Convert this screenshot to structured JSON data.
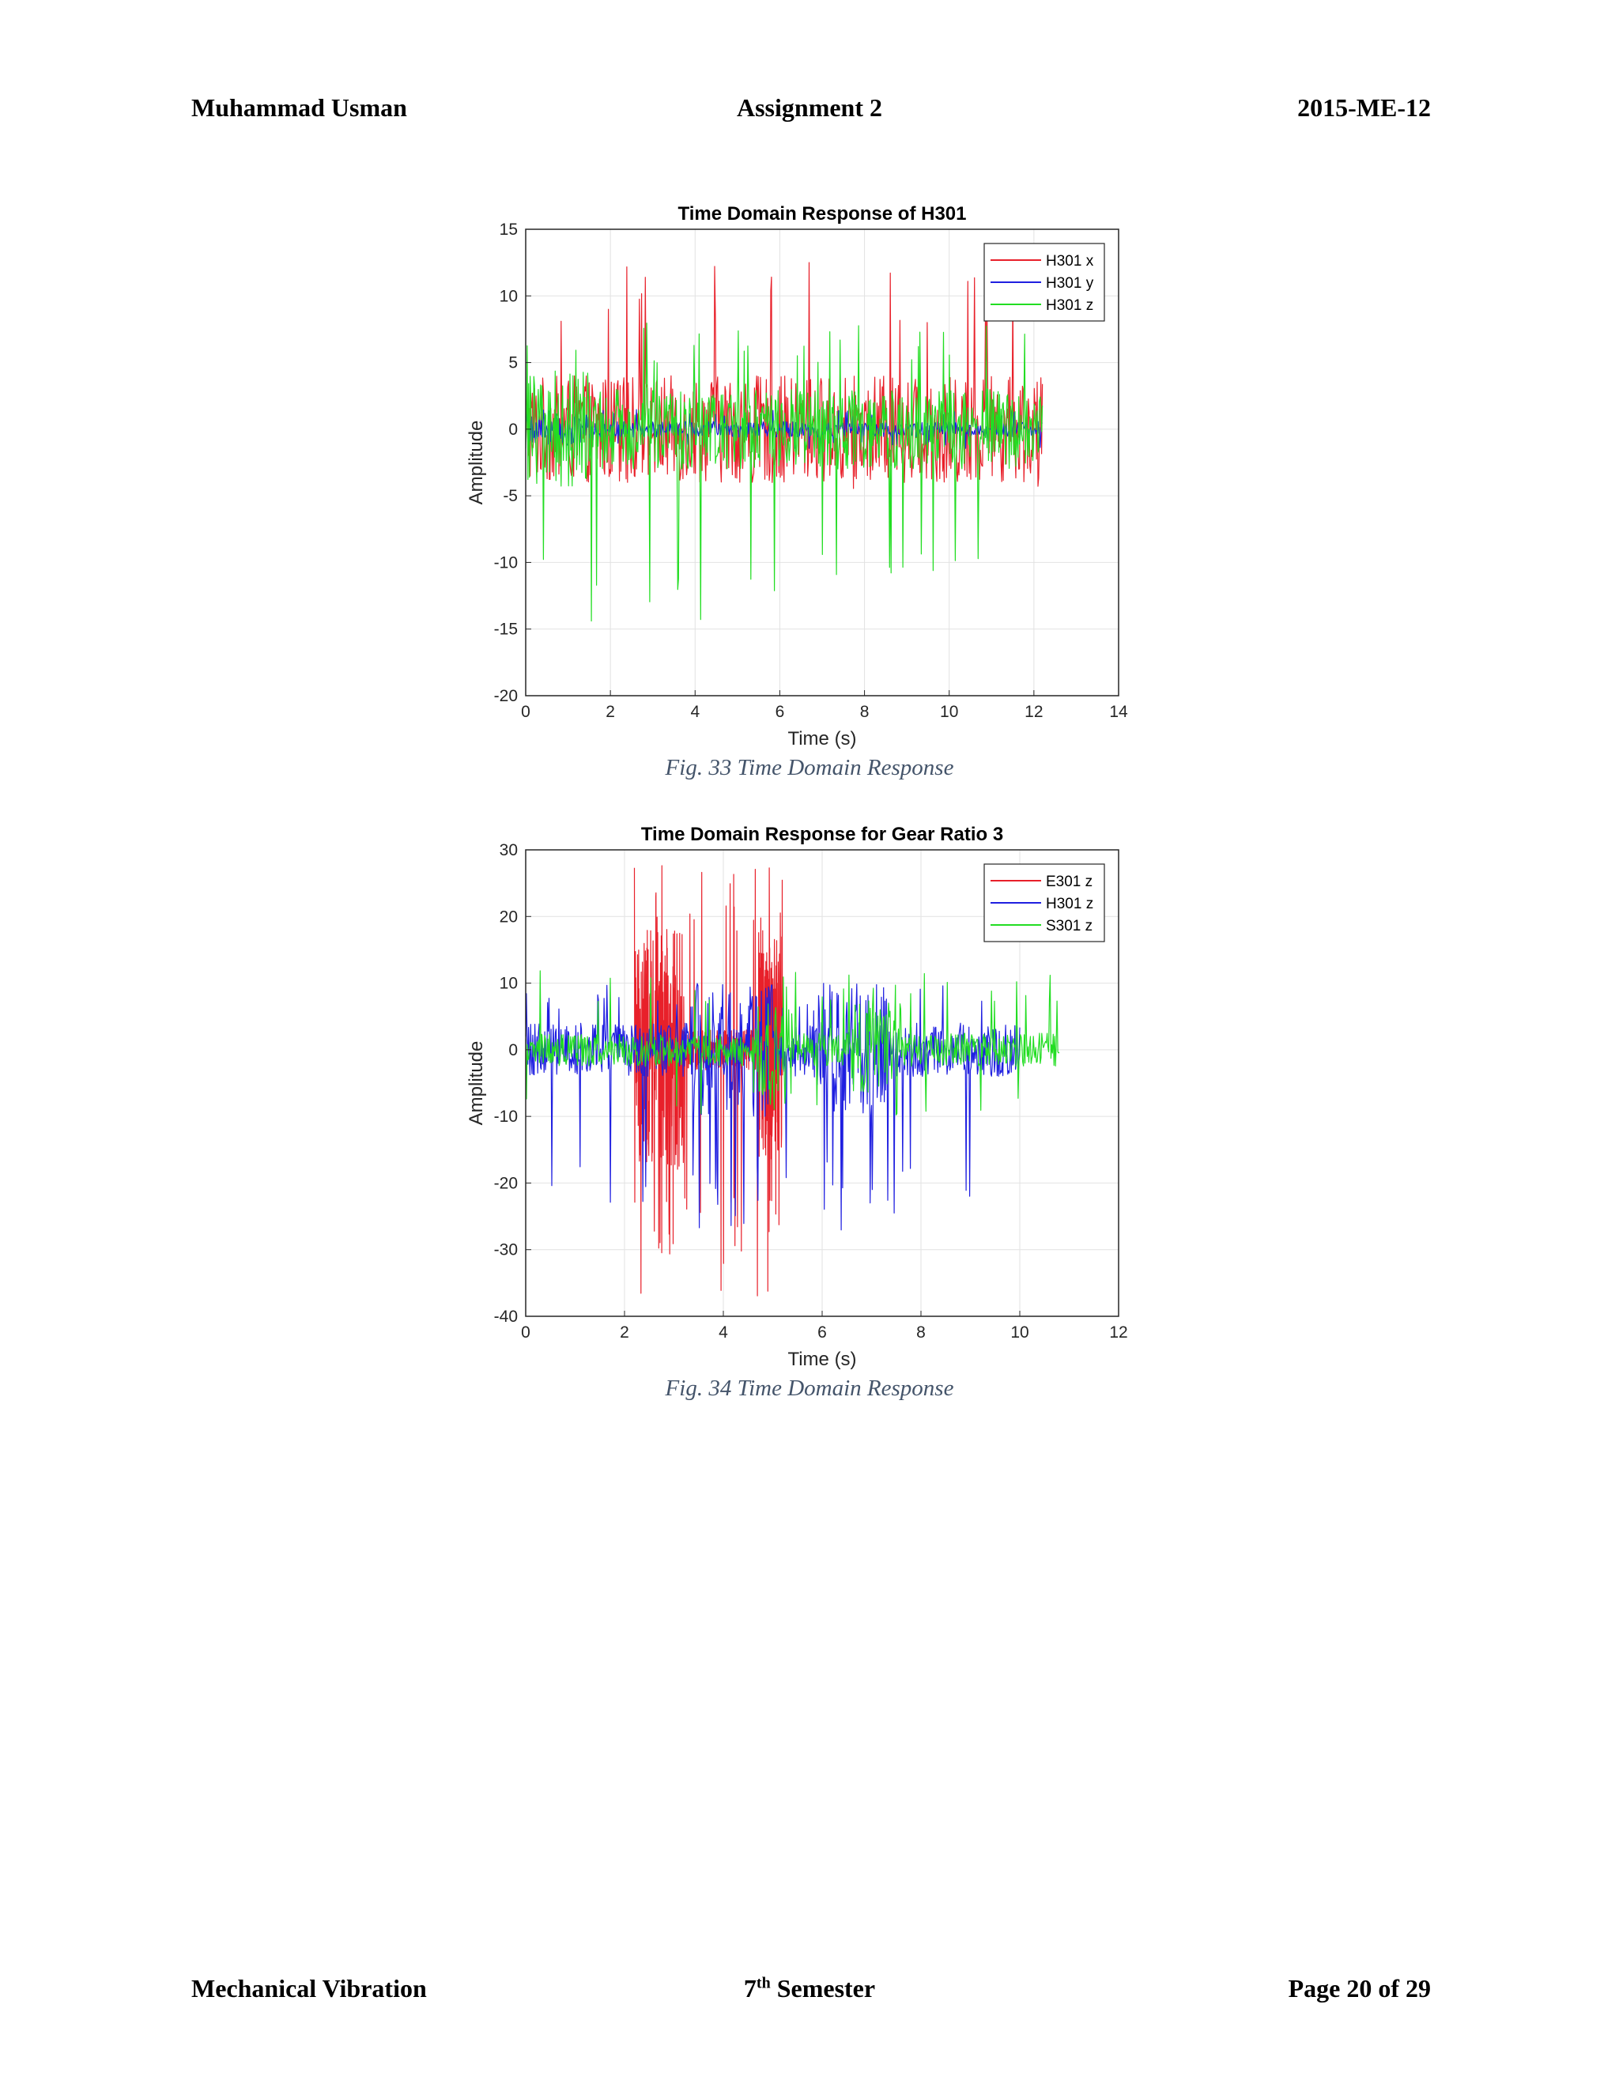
{
  "header": {
    "left": "Muhammad Usman",
    "center": "Assignment 2",
    "right": "2015-ME-12"
  },
  "footer": {
    "left": "Mechanical Vibration",
    "center_base": "7",
    "center_sup": "th",
    "center_rest": " Semester",
    "right": "Page 20 of 29"
  },
  "figures": [
    {
      "caption": "Fig.  33 Time Domain Response"
    },
    {
      "caption": "Fig.  34 Time Domain Response"
    }
  ],
  "chart_data": [
    {
      "type": "line",
      "title": "Time Domain Response of H301",
      "xlabel": "Time (s)",
      "ylabel": "Amplitude",
      "xlim": [
        0,
        14
      ],
      "ylim": [
        -20,
        15
      ],
      "xticks": [
        0,
        2,
        4,
        6,
        8,
        10,
        12,
        14
      ],
      "yticks": [
        -20,
        -15,
        -10,
        -5,
        0,
        5,
        10,
        15
      ],
      "grid": true,
      "legend_position": "top-right",
      "data_extent_x": [
        0,
        12.2
      ],
      "series": [
        {
          "name": "H301 x",
          "color": "#e8202a",
          "peak_max": 13,
          "peak_min": -4.5,
          "typical_amplitude": 4
        },
        {
          "name": "H301 y",
          "color": "#1f1fe0",
          "peak_max": 1.5,
          "peak_min": -1.5,
          "typical_amplitude": 0.5
        },
        {
          "name": "H301 z",
          "color": "#22dd22",
          "peak_max": 8,
          "peak_min": -15,
          "typical_amplitude": 3
        }
      ]
    },
    {
      "type": "line",
      "title": "Time Domain Response for Gear Ratio 3",
      "xlabel": "Time (s)",
      "ylabel": "Amplitude",
      "xlim": [
        0,
        12
      ],
      "ylim": [
        -40,
        30
      ],
      "xticks": [
        0,
        2,
        4,
        6,
        8,
        10,
        12
      ],
      "yticks": [
        -40,
        -30,
        -20,
        -10,
        0,
        10,
        20,
        30
      ],
      "grid": true,
      "legend_position": "top-right",
      "series": [
        {
          "name": "E301 z",
          "color": "#e8202a",
          "data_extent_x": [
            2.2,
            5.2
          ],
          "peak_max": 28,
          "peak_min": -37
        },
        {
          "name": "H301 z",
          "color": "#1f1fe0",
          "data_extent_x": [
            0,
            10.0
          ],
          "peak_max": 10,
          "peak_min": -28
        },
        {
          "name": "S301 z",
          "color": "#22dd22",
          "data_extent_x": [
            0,
            10.8
          ],
          "peak_max": 12,
          "peak_min": -10
        }
      ]
    }
  ]
}
